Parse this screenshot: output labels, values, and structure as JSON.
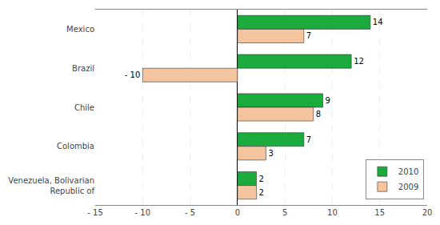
{
  "chart_data": {
    "type": "bar",
    "orientation": "horizontal",
    "categories": [
      "Mexico",
      "Brazil",
      "Chile",
      "Colombia",
      "Venezuela, Bolivarian\nRepublic of"
    ],
    "series": [
      {
        "name": "2010",
        "color": "#1aab3c",
        "values": [
          14,
          12,
          9,
          7,
          2
        ]
      },
      {
        "name": "2009",
        "color": "#f4c49e",
        "values": [
          7,
          -10,
          8,
          3,
          2
        ],
        "value_labels": [
          "7",
          "- 10",
          "8",
          "3",
          "2"
        ]
      }
    ],
    "xlim": [
      -15,
      20
    ],
    "xticks": [
      {
        "value": -15,
        "label": "- 15"
      },
      {
        "value": -10,
        "label": "- 10"
      },
      {
        "value": -5,
        "label": "- 5"
      },
      0,
      5,
      10,
      15,
      20
    ],
    "grid": true,
    "data_labels": true,
    "legend": "lower right"
  }
}
